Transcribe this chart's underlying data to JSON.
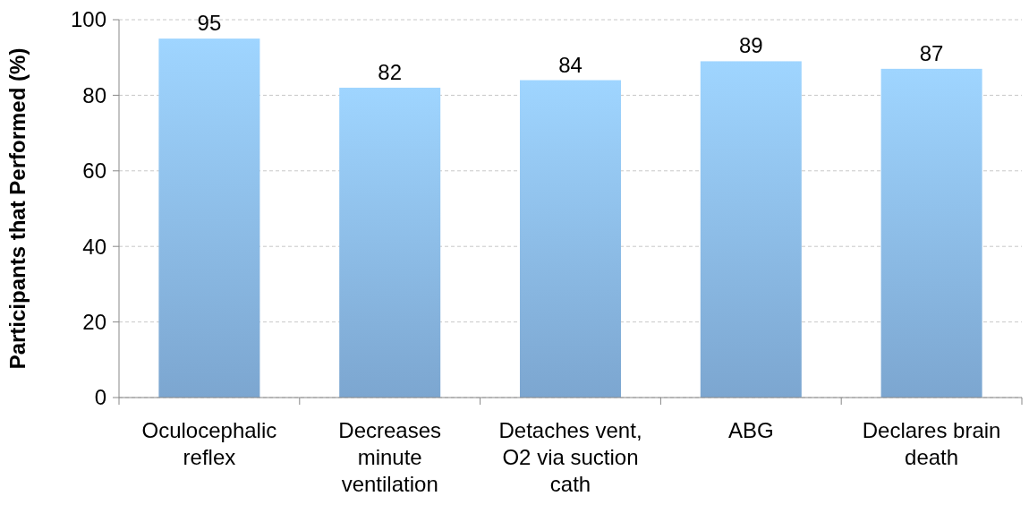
{
  "chart_data": {
    "type": "bar",
    "ylabel": "Participants that Performed (%)",
    "categories": [
      "Oculocephalic reflex",
      "Decreases minute ventilation",
      "Detaches vent, O2 via suction cath",
      "ABG",
      "Declares brain death"
    ],
    "values": [
      95,
      82,
      84,
      89,
      87
    ],
    "color": "#8cbcec",
    "ylim": [
      0,
      100
    ],
    "yticks": [
      0,
      20,
      40,
      60,
      80,
      100
    ],
    "grid": "y",
    "data_labels": true
  }
}
